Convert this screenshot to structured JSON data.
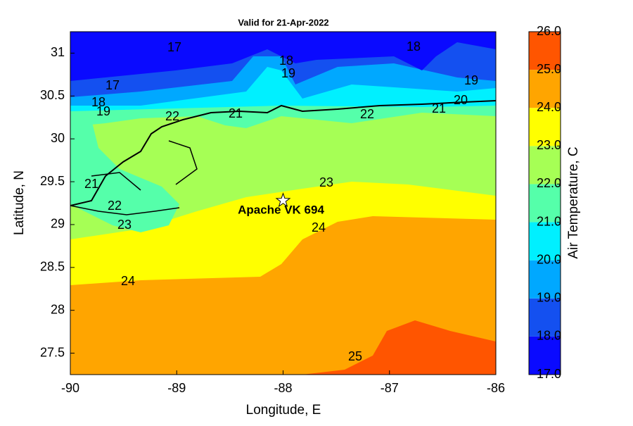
{
  "chart_data": {
    "type": "contourf",
    "title": "Valid for 21-Apr-2022",
    "x_label": "Longitude, E",
    "y_label": "Latitude, N",
    "xlim": [
      -90,
      -86
    ],
    "xticks": [
      -90,
      -89,
      -88,
      -87,
      -86
    ],
    "ylim": [
      27.25,
      31.25
    ],
    "yticks": [
      27.5,
      28,
      28.5,
      29,
      29.5,
      30,
      30.5,
      31
    ],
    "colorbar": {
      "label": "Air Temperature, C",
      "ticks": [
        {
          "value": 17,
          "label": "17.0"
        },
        {
          "value": 18,
          "label": "18.0"
        },
        {
          "value": 19,
          "label": "19.0"
        },
        {
          "value": 20,
          "label": "20.0"
        },
        {
          "value": 21,
          "label": "21.0"
        },
        {
          "value": 22,
          "label": "22.0"
        },
        {
          "value": 23,
          "label": "23.0"
        },
        {
          "value": 24,
          "label": "24.0"
        },
        {
          "value": 25,
          "label": "25.0"
        },
        {
          "value": 26,
          "label": "26.0"
        }
      ],
      "colors": [
        "#0a0aff",
        "#1450f0",
        "#00a8ff",
        "#00f0ff",
        "#55ffaa",
        "#a6ff55",
        "#ffff00",
        "#ffa500",
        "#ff5500"
      ]
    },
    "contour_labels": [
      17,
      18,
      18,
      19,
      17,
      19,
      18,
      19,
      20,
      22,
      21,
      22,
      21,
      21,
      22,
      23,
      23,
      24,
      24,
      25
    ],
    "station": {
      "name": "Apache VK 694",
      "lon": -88,
      "lat": 29.28
    }
  }
}
